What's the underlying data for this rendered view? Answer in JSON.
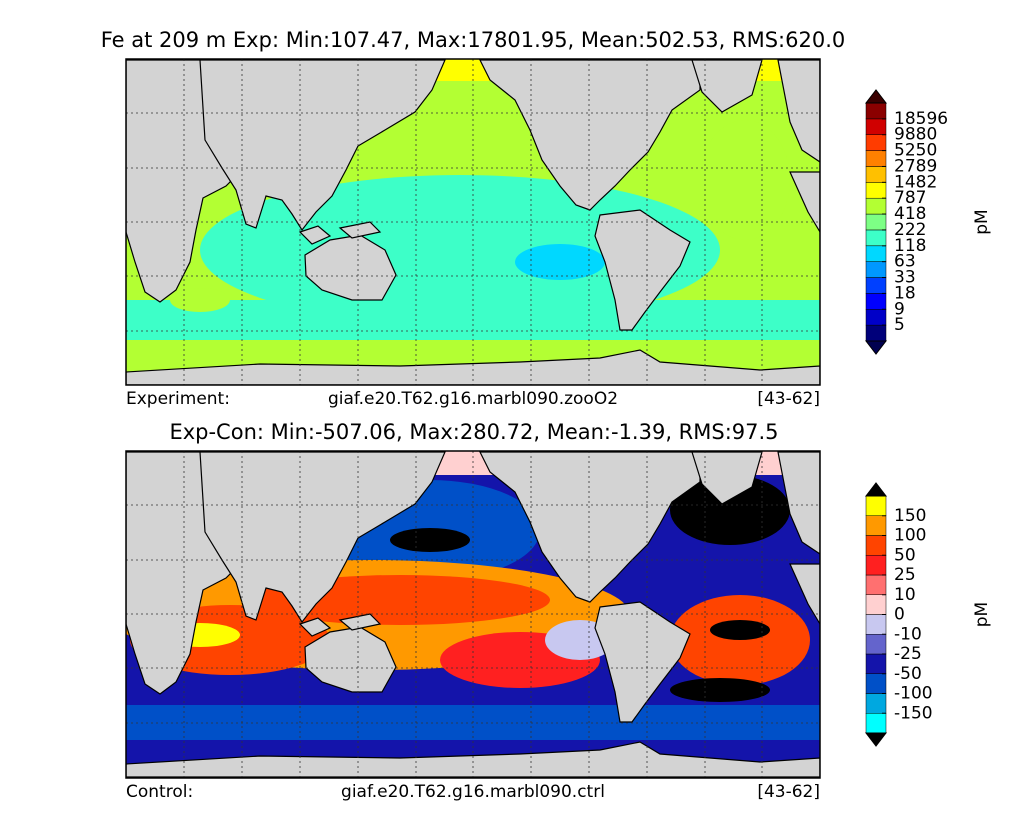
{
  "panels": [
    {
      "title": "Fe at 209 m Exp: Min:107.47, Max:17801.95, Mean:502.53, RMS:620.0",
      "colorbar": {
        "label": "pM",
        "ticks": [
          5,
          9,
          18,
          33,
          63,
          118,
          222,
          418,
          787,
          1482,
          2789,
          5250,
          9880,
          18596
        ],
        "colors": [
          "#00007a",
          "#0000c8",
          "#0000ff",
          "#0040ff",
          "#0098ff",
          "#00d8ff",
          "#3dffc8",
          "#7dff85",
          "#b3ff33",
          "#ffff00",
          "#ffc000",
          "#ff8000",
          "#ff3c00",
          "#d00000",
          "#8b0000"
        ],
        "extend_colors": [
          "#000050",
          "#3a0000"
        ]
      },
      "footer": {
        "left": "Experiment:",
        "center": "giaf.e20.T62.g16.marbl090.zooO2",
        "right": "[43-62]"
      }
    },
    {
      "title": "Exp-Con: Min:-507.06, Max:280.72, Mean:-1.39, RMS:97.5",
      "colorbar": {
        "label": "pM",
        "ticks": [
          -150,
          -100,
          -50,
          -25,
          -10,
          0,
          10,
          25,
          50,
          100,
          150
        ],
        "colors": [
          "#00ffff",
          "#00a8e0",
          "#0050c8",
          "#1414aa",
          "#6464cc",
          "#c8c8f0",
          "#ffd0d0",
          "#ff7070",
          "#ff2020",
          "#ff4400",
          "#ff9900",
          "#ffff00"
        ],
        "extend_colors": [
          "#000000",
          "#000000"
        ]
      },
      "footer": {
        "left": "Control:",
        "center": "giaf.e20.T62.g16.marbl090.ctrl",
        "right": "[43-62]"
      }
    }
  ]
}
